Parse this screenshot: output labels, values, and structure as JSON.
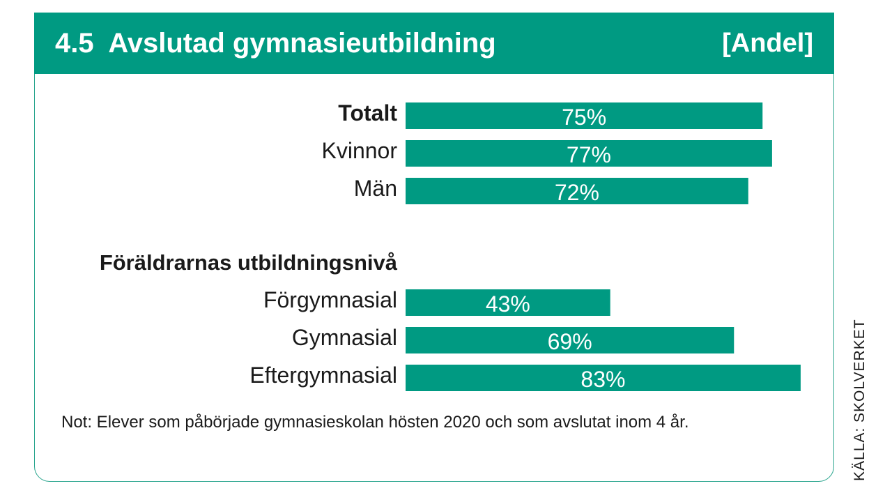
{
  "header": {
    "title": "4.5  Avslutad gymnasieutbildning",
    "unit": "[Andel]"
  },
  "source": "KÄLLA: SKOLVERKET",
  "note": "Not: Elever som påbörjade gymnasieskolan hösten 2020 och som avslutat inom 4 år.",
  "colors": {
    "accent": "#009a82",
    "bar": "#009a82",
    "bar_label": "#ffffff",
    "text": "#1a1a1a"
  },
  "chart_data": {
    "type": "bar",
    "orientation": "horizontal",
    "title": "4.5  Avslutad gymnasieutbildning",
    "unit": "[Andel]",
    "groups": [
      {
        "heading": "",
        "items": [
          {
            "label": "Totalt",
            "value": 75,
            "display": "75%",
            "bold": true
          },
          {
            "label": "Kvinnor",
            "value": 77,
            "display": "77%"
          },
          {
            "label": "Män",
            "value": 72,
            "display": "72%"
          }
        ]
      },
      {
        "heading": "Föräldrarnas utbildningsnivå",
        "items": [
          {
            "label": "Förgymnasial",
            "value": 43,
            "display": "43%"
          },
          {
            "label": "Gymnasial",
            "value": 69,
            "display": "69%"
          },
          {
            "label": "Eftergymnasial",
            "value": 83,
            "display": "83%"
          }
        ]
      }
    ],
    "xlim": [
      0,
      100
    ],
    "grid": false,
    "legend": "none"
  }
}
